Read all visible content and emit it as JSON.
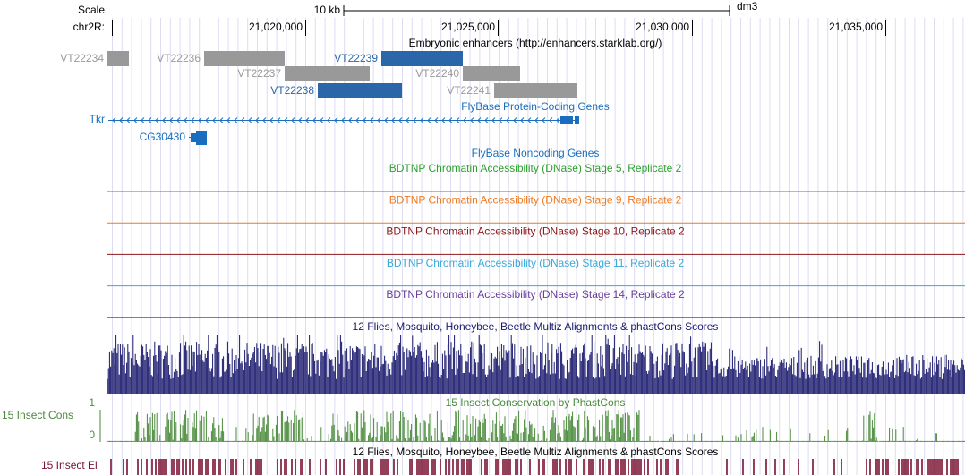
{
  "ruler": {
    "scale_label": "Scale",
    "bar_label": "10 kb",
    "assembly": "dm3",
    "chrom_label": "chr2R:",
    "ticks": [
      "21,020,000",
      "21,025,000",
      "21,030,000",
      "21,035,000"
    ]
  },
  "enhancers": {
    "title": "Embryonic enhancers (http://enhancers.starklab.org/)",
    "items": [
      {
        "label": "VT22234",
        "color": "#999999"
      },
      {
        "label": "VT22236",
        "color": "#999999"
      },
      {
        "label": "VT22237",
        "color": "#999999"
      },
      {
        "label": "VT22239",
        "color": "#2a66a8"
      },
      {
        "label": "VT22240",
        "color": "#999999"
      },
      {
        "label": "VT22238",
        "color": "#2a66a8"
      },
      {
        "label": "VT22241",
        "color": "#999999"
      }
    ]
  },
  "genes": {
    "title": "FlyBase Protein-Coding Genes",
    "items": [
      "Tkr",
      "CG30430"
    ],
    "color": "#1a6ebd"
  },
  "noncoding": {
    "title": "FlyBase Noncoding Genes",
    "color": "#1a6ebd"
  },
  "dnase": [
    {
      "title": "BDTNP Chromatin Accessibility (DNase) Stage 5, Replicate 2",
      "color": "#2ca02c"
    },
    {
      "title": "BDTNP Chromatin Accessibility (DNase) Stage 9, Replicate 2",
      "color": "#ee7a22"
    },
    {
      "title": "BDTNP Chromatin Accessibility (DNase) Stage 10, Replicate 2",
      "color": "#8b1a1a"
    },
    {
      "title": "BDTNP Chromatin Accessibility (DNase) Stage 11, Replicate 2",
      "color": "#3ba8d8"
    },
    {
      "title": "BDTNP Chromatin Accessibility (DNase) Stage 14, Replicate 2",
      "color": "#6a3d9a"
    }
  ],
  "multiz": {
    "title": "12 Flies, Mosquito, Honeybee, Beetle Multiz Alignments & phastCons Scores",
    "color": "#1a1a6e"
  },
  "phastcons": {
    "title": "15 Insect Conservation by PhastCons",
    "side_label": "15 Insect Cons",
    "axis_top": "1",
    "axis_bottom": "0",
    "color": "#4a8a3a"
  },
  "elements": {
    "title": "12 Flies, Mosquito, Honeybee, Beetle Multiz Alignments & phastCons Scores",
    "side_label": "15 Insect El",
    "color": "#7a1030"
  }
}
